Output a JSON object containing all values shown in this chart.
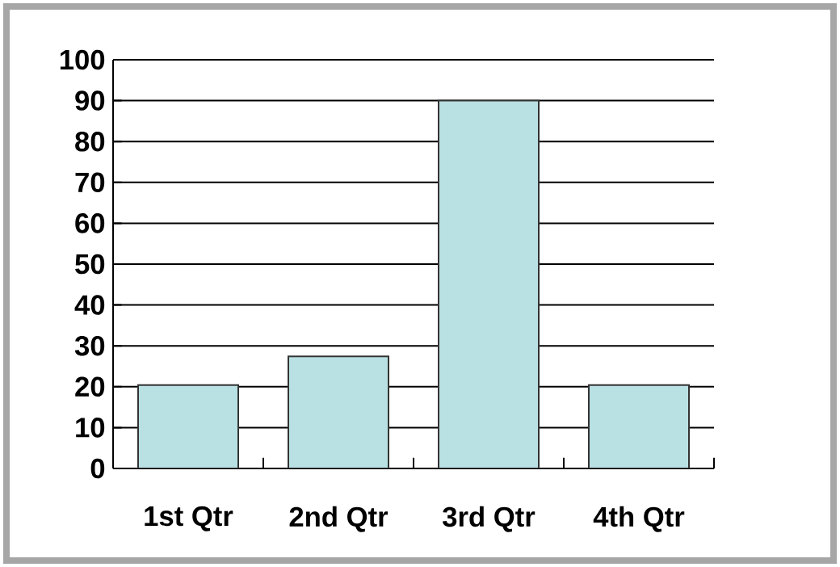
{
  "chart_data": {
    "type": "bar",
    "categories": [
      "1st Qtr",
      "2nd Qtr",
      "3rd Qtr",
      "4th Qtr"
    ],
    "values": [
      20.4,
      27.4,
      90,
      20.4
    ],
    "color": "#b9e0e3",
    "ylim": [
      0,
      100
    ],
    "yticks": [
      0,
      10,
      20,
      30,
      40,
      50,
      60,
      70,
      80,
      90,
      100
    ],
    "grid": "y"
  }
}
